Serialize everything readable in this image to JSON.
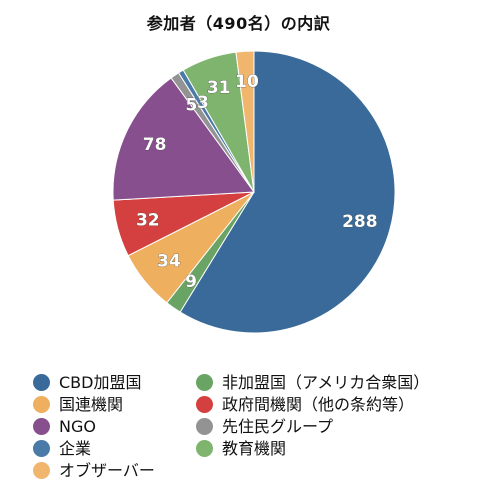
{
  "chart_data": {
    "type": "pie",
    "title": "参加者（490名）の内訳",
    "slices": [
      {
        "label": "CBD加盟国",
        "value": 288,
        "color": "#3a6a99"
      },
      {
        "label": "非加盟国（アメリカ合衆国）",
        "value": 9,
        "color": "#6aa464"
      },
      {
        "label": "国連機関",
        "value": 34,
        "color": "#eeaf5e"
      },
      {
        "label": "政府間機関（他の条約等）",
        "value": 32,
        "color": "#d3403f"
      },
      {
        "label": "NGO",
        "value": 78,
        "color": "#874f8e"
      },
      {
        "label": "先住民グループ",
        "value": 5,
        "color": "#939393"
      },
      {
        "label": "企業",
        "value": 3,
        "color": "#4a7aa7"
      },
      {
        "label": "教育機関",
        "value": 31,
        "color": "#7fb46f"
      },
      {
        "label": "オブザーバー",
        "value": 10,
        "color": "#f1b66d"
      }
    ],
    "legend": [
      "CBD加盟国",
      "非加盟国（アメリカ合衆国）",
      "国連機関",
      "政府間機関（他の条約等）",
      "NGO",
      "先住民グループ",
      "企業",
      "教育機関",
      "オブザーバー"
    ],
    "legend_placement": "bottom"
  }
}
